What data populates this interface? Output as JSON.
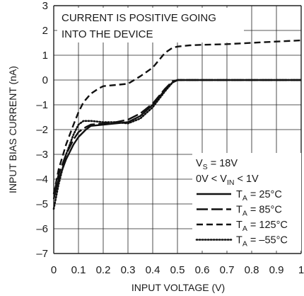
{
  "chart_data": {
    "type": "line",
    "xlabel": "INPUT VOLTAGE (V)",
    "ylabel": "INPUT BIAS CURRENT (nA)",
    "xlim": [
      0,
      1
    ],
    "ylim": [
      -7,
      3
    ],
    "x_ticks": [
      0,
      0.1,
      0.2,
      0.3,
      0.4,
      0.5,
      0.6,
      0.7,
      0.8,
      0.9,
      1
    ],
    "x_tick_labels": [
      "0",
      "0.1",
      "0.2",
      "0.3",
      "0.4",
      "0.5",
      "0.6",
      "0.7",
      "0.8",
      "0.9",
      "1"
    ],
    "y_ticks": [
      3,
      2,
      1,
      0,
      -1,
      -2,
      -3,
      -4,
      -5,
      -6,
      -7
    ],
    "y_tick_labels": [
      "3",
      "2",
      "1",
      "0",
      "–1",
      "–2",
      "–3",
      "–4",
      "–5",
      "–6",
      "–7"
    ],
    "grid": true,
    "annotation": [
      "CURRENT IS POSITIVE GOING",
      "INTO THE DEVICE"
    ],
    "conditions": {
      "vs": {
        "main": "V",
        "sub": "S",
        "rest": " = 18V"
      },
      "vin": {
        "pre": "0V < V",
        "sub": "IN",
        "rest": " < 1V"
      }
    },
    "legend_position": "bottom-right",
    "series": [
      {
        "name": "T_A = 25°C",
        "label": {
          "main": "T",
          "sub": "A",
          "rest": " = 25°C"
        },
        "style": "solid",
        "x": [
          0,
          0.02,
          0.05,
          0.08,
          0.1,
          0.13,
          0.15,
          0.2,
          0.25,
          0.3,
          0.35,
          0.4,
          0.45,
          0.48,
          0.5,
          0.55,
          0.6,
          0.7,
          0.8,
          0.9,
          1.0
        ],
        "y": [
          -4.8,
          -4.0,
          -3.2,
          -2.6,
          -2.3,
          -2.0,
          -1.85,
          -1.8,
          -1.75,
          -1.7,
          -1.45,
          -1.0,
          -0.4,
          -0.1,
          0.0,
          0.0,
          0.0,
          0.0,
          0.0,
          0.0,
          0.0
        ]
      },
      {
        "name": "T_A = 85°C",
        "label": {
          "main": "T",
          "sub": "A",
          "rest": " = 85°C"
        },
        "style": "longdash",
        "x": [
          0,
          0.02,
          0.05,
          0.08,
          0.1,
          0.13,
          0.15,
          0.2,
          0.25,
          0.3,
          0.35,
          0.4,
          0.45,
          0.48,
          0.5,
          0.55,
          0.6,
          0.7,
          0.8,
          0.9,
          1.0
        ],
        "y": [
          -4.6,
          -3.8,
          -3.0,
          -2.4,
          -2.1,
          -1.9,
          -1.8,
          -1.75,
          -1.7,
          -1.6,
          -1.35,
          -0.95,
          -0.35,
          -0.05,
          0.0,
          0.0,
          0.0,
          0.0,
          0.0,
          0.0,
          0.0
        ]
      },
      {
        "name": "T_A = 125°C",
        "label": {
          "main": "T",
          "sub": "A",
          "rest": " = 125°C"
        },
        "style": "dash",
        "x": [
          0,
          0.02,
          0.05,
          0.08,
          0.1,
          0.12,
          0.15,
          0.18,
          0.2,
          0.25,
          0.3,
          0.35,
          0.4,
          0.45,
          0.48,
          0.5,
          0.55,
          0.6,
          0.7,
          0.8,
          0.9,
          1.0
        ],
        "y": [
          -4.6,
          -3.6,
          -2.6,
          -1.8,
          -1.3,
          -0.9,
          -0.55,
          -0.35,
          -0.25,
          -0.2,
          -0.15,
          0.15,
          0.5,
          1.1,
          1.3,
          1.35,
          1.4,
          1.42,
          1.45,
          1.5,
          1.55,
          1.6
        ]
      },
      {
        "name": "T_A = –55°C",
        "label": {
          "main": "T",
          "sub": "A",
          "rest": " = –55°C"
        },
        "style": "dot",
        "x": [
          0,
          0.02,
          0.05,
          0.08,
          0.1,
          0.12,
          0.15,
          0.2,
          0.25,
          0.3,
          0.35,
          0.4,
          0.45,
          0.48,
          0.5,
          0.55,
          0.6,
          0.7,
          0.8,
          0.9,
          1.0
        ],
        "y": [
          -5.2,
          -4.2,
          -3.0,
          -2.2,
          -1.8,
          -1.65,
          -1.65,
          -1.7,
          -1.7,
          -1.75,
          -1.55,
          -1.1,
          -0.45,
          -0.1,
          0.0,
          0.0,
          0.0,
          0.0,
          0.0,
          0.0,
          0.0
        ]
      }
    ]
  }
}
